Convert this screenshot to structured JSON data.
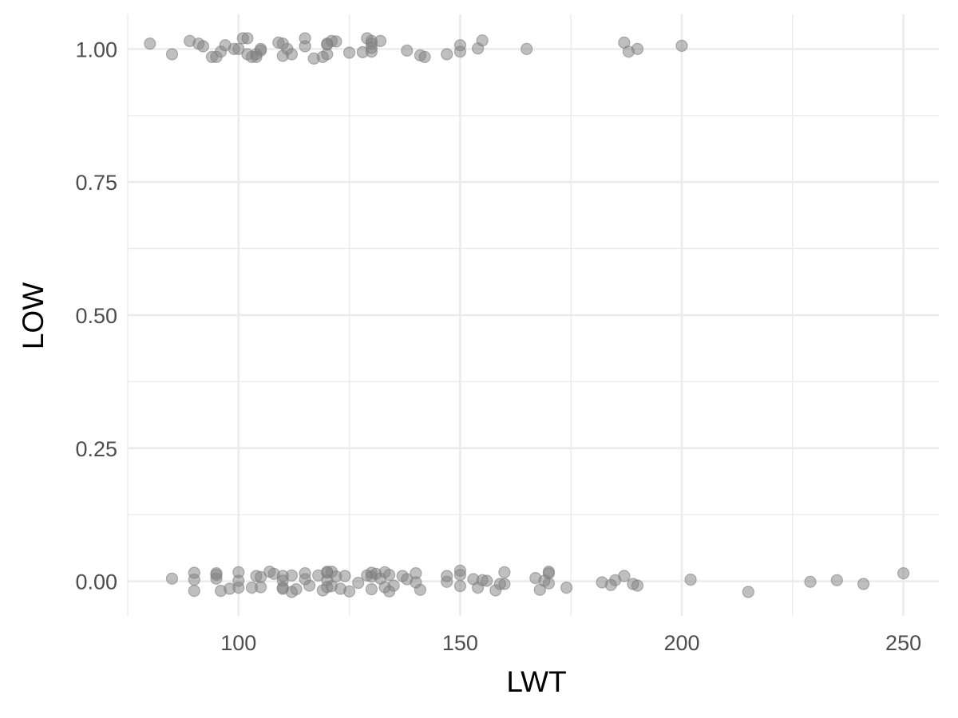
{
  "chart_data": {
    "type": "scatter",
    "xlabel": "LWT",
    "ylabel": "LOW",
    "xlim": [
      75,
      258
    ],
    "ylim": [
      -0.065,
      1.065
    ],
    "x_ticks": [
      100,
      150,
      200,
      250
    ],
    "x_tick_labels": [
      "100",
      "150",
      "200",
      "250"
    ],
    "x_minor": [
      75,
      125,
      175,
      225
    ],
    "y_ticks": [
      0,
      0.25,
      0.5,
      0.75,
      1.0
    ],
    "y_tick_labels": [
      "0.00",
      "0.25",
      "0.50",
      "0.75",
      "1.00"
    ],
    "y_minor": [
      0.125,
      0.375,
      0.625,
      0.875
    ],
    "grid": true,
    "jitter": true,
    "point_color": "#808080",
    "series": [
      {
        "x": [
          80,
          85,
          89,
          91,
          92,
          94,
          95,
          96,
          97,
          99,
          100,
          101,
          102,
          102,
          103,
          104,
          104,
          105,
          105,
          109,
          110,
          110,
          111,
          112,
          115,
          115,
          117,
          119,
          120,
          120,
          120,
          121,
          122,
          125,
          128,
          129,
          130,
          130,
          130,
          130,
          132,
          138,
          141,
          142,
          147,
          150,
          150,
          154,
          155,
          165,
          187,
          188,
          190,
          200
        ],
        "y": [
          1.01,
          0.99,
          1.015,
          1.01,
          1.005,
          0.985,
          0.985,
          0.995,
          1.007,
          1.0,
          1.0,
          1.02,
          1.02,
          0.99,
          0.985,
          0.99,
          0.985,
          1.0,
          0.997,
          1.012,
          0.987,
          1.01,
          1.0,
          0.99,
          1.02,
          1.005,
          0.982,
          0.985,
          0.99,
          1.01,
          1.008,
          1.015,
          1.014,
          0.993,
          0.994,
          1.02,
          1.015,
          1.002,
          0.995,
          1.01,
          1.015,
          0.997,
          0.988,
          0.985,
          0.99,
          1.007,
          0.995,
          1.001,
          1.016,
          1.0,
          1.012,
          0.995,
          1.0,
          1.006
        ]
      },
      {
        "x": [
          85,
          90,
          90,
          90,
          95,
          95,
          95,
          96,
          98,
          100,
          100,
          100,
          103,
          104,
          105,
          105,
          107,
          108,
          110,
          110,
          110,
          110,
          112,
          112,
          113,
          115,
          115,
          116,
          118,
          119,
          120,
          120,
          120,
          120,
          121,
          121,
          122,
          123,
          124,
          125,
          127,
          129,
          130,
          130,
          130,
          131,
          132,
          133,
          133,
          134,
          134,
          135,
          137,
          138,
          140,
          140,
          141,
          147,
          147,
          150,
          150,
          150,
          153,
          154,
          155,
          156,
          158,
          159,
          160,
          160,
          167,
          168,
          169,
          170,
          170,
          170,
          174,
          182,
          184,
          185,
          187,
          189,
          190,
          202,
          215,
          229,
          235,
          241,
          250
        ],
        "y": [
          0.005,
          0.016,
          0.003,
          -0.018,
          0.012,
          0.015,
          0.005,
          -0.018,
          -0.014,
          0.017,
          0.001,
          -0.012,
          -0.012,
          0.01,
          -0.011,
          0.008,
          0.018,
          0.014,
          0.01,
          -0.014,
          0.001,
          -0.012,
          0.011,
          -0.02,
          -0.015,
          0.015,
          0.004,
          -0.008,
          0.011,
          -0.017,
          0.018,
          0.016,
          0.002,
          -0.011,
          0.018,
          -0.009,
          0.009,
          -0.014,
          0.01,
          -0.019,
          -0.003,
          0.011,
          0.016,
          0.009,
          -0.015,
          0.014,
          0.005,
          0.017,
          -0.011,
          -0.019,
          0.012,
          -0.008,
          0.01,
          0.004,
          0.015,
          -0.002,
          -0.016,
          0.01,
          -0.001,
          0.02,
          0.012,
          -0.009,
          0.004,
          -0.012,
          0.002,
          0.001,
          -0.017,
          -0.005,
          -0.005,
          0.017,
          0.006,
          -0.016,
          0.001,
          0.018,
          0.015,
          -0.004,
          -0.012,
          -0.002,
          -0.007,
          0.002,
          0.01,
          -0.005,
          -0.008,
          0.003,
          -0.02,
          -0.001,
          0.002,
          -0.005,
          0.015
        ]
      }
    ]
  }
}
